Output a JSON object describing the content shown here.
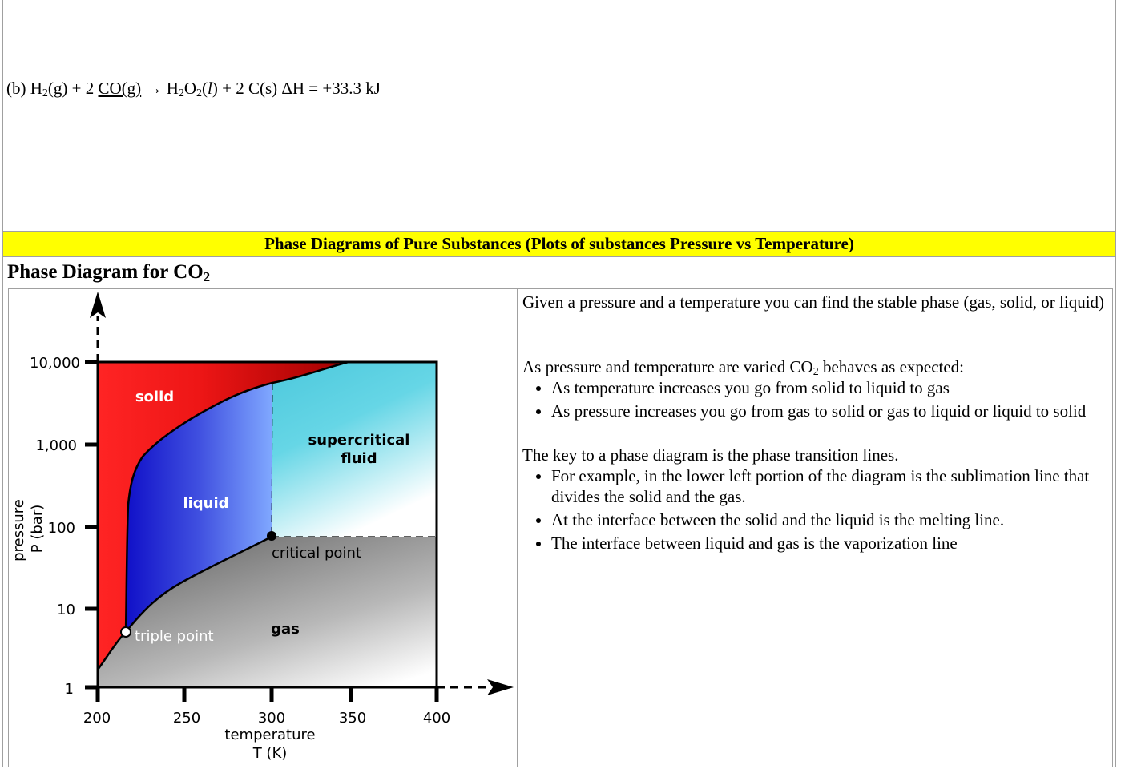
{
  "equation": {
    "label": "(b)",
    "reactant1": "H",
    "reactant1_sub": "2",
    "reactant1_state": "(g) + 2",
    "reactant2": "CO(g)",
    "arrow": "→",
    "product1": "H",
    "product1_sub1": "2",
    "product1_mid": "O",
    "product1_sub2": "2",
    "product1_state_open": "(",
    "product1_state": "l",
    "product1_state_close": ")",
    "product2": "+ 2 C(s)",
    "enthalpy": "ΔH = +33.3 kJ"
  },
  "section_header": "Phase Diagrams of Pure Substances (Plots of substances Pressure vs Temperature)",
  "diagram_title": "Phase Diagram for CO",
  "diagram_title_sub": "2",
  "diagram": {
    "y_ticks": [
      "10,000",
      "1,000",
      "100",
      "10",
      "1"
    ],
    "x_ticks": [
      "200",
      "250",
      "300",
      "350",
      "400"
    ],
    "x_label_line1": "temperature",
    "x_label_line2": "T (K)",
    "y_label_line1": "pressure",
    "y_label_line2": "P (bar)",
    "regions": {
      "solid": "solid",
      "liquid": "liquid",
      "supercritical_line1": "supercritical",
      "supercritical_line2": "fluid",
      "gas": "gas"
    },
    "points": {
      "triple": "triple point",
      "critical": "critical point"
    },
    "colors": {
      "solid": "#ff2020",
      "liquid": "#1a1acc",
      "supercritical": "#4fd0e0",
      "gas": "#808080"
    }
  },
  "explanation": {
    "intro": "Given a pressure and a temperature you can find the stable phase (gas, solid, or liquid)",
    "behavior_prefix": "As pressure and temperature are varied CO",
    "behavior_sub": "2",
    "behavior_suffix": " behaves as expected:",
    "behavior_items": [
      "As temperature increases you go from solid to liquid to gas",
      "As pressure increases you go from gas to solid or gas to liquid or liquid to solid"
    ],
    "key_intro": "The key to a phase diagram is the phase transition lines.",
    "key_items": [
      "For example, in the lower left portion of the diagram is the sublimation line that divides the solid and the gas.",
      "At the interface between the solid and the liquid is the melting line.",
      "The interface between liquid and gas is the vaporization line"
    ]
  }
}
